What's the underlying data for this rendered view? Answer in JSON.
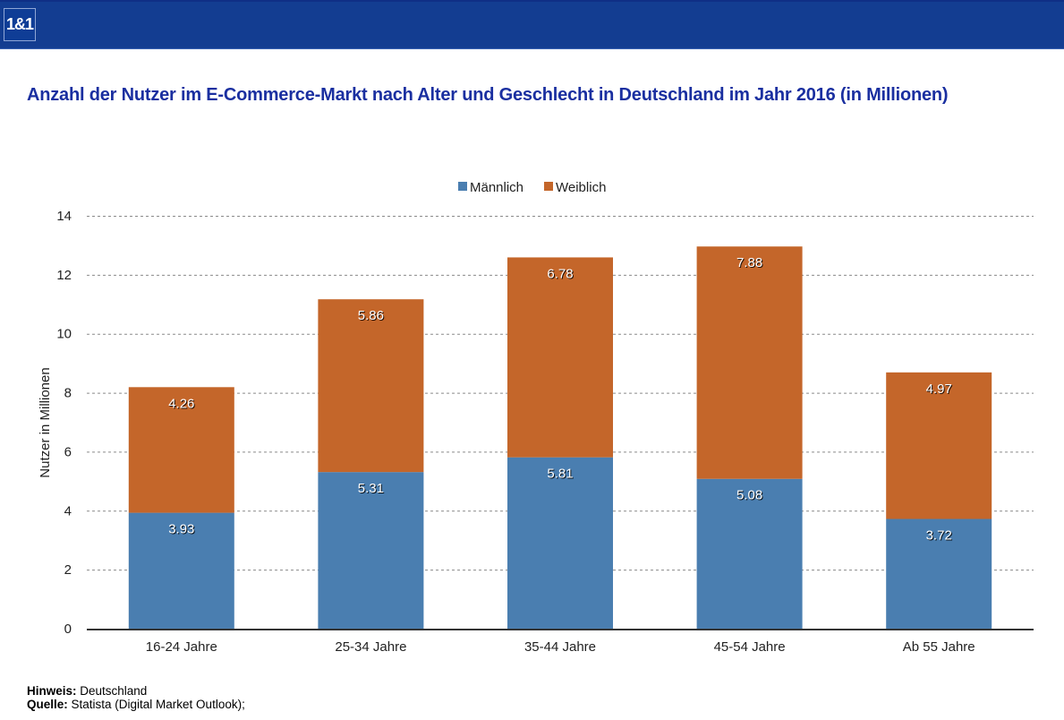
{
  "header": {
    "logo_text": "1&1",
    "brand_color": "#133d91"
  },
  "title": "Anzahl der Nutzer im E-Commerce-Markt nach Alter und Geschlecht in Deutschland im Jahr 2016 (in Millionen)",
  "footer": {
    "hinweis_label": "Hinweis:",
    "hinweis_value": " Deutschland",
    "quelle_label": "Quelle:",
    "quelle_value": " Statista (Digital Market Outlook);"
  },
  "chart_data": {
    "type": "bar",
    "stacked": true,
    "title": "Anzahl der Nutzer im E-Commerce-Markt nach Alter und Geschlecht in Deutschland im Jahr 2016 (in Millionen)",
    "xlabel": "",
    "ylabel": "Nutzer in Millionen",
    "categories": [
      "16-24 Jahre",
      "25-34 Jahre",
      "35-44 Jahre",
      "45-54 Jahre",
      "Ab 55 Jahre"
    ],
    "series": [
      {
        "name": "Männlich",
        "color": "#4a7eb0",
        "values": [
          3.93,
          5.31,
          5.81,
          5.08,
          3.72
        ]
      },
      {
        "name": "Weiblich",
        "color": "#c4662a",
        "values": [
          4.26,
          5.86,
          6.78,
          7.88,
          4.97
        ]
      }
    ],
    "ylim": [
      0,
      14
    ],
    "yticks": [
      0,
      2,
      4,
      6,
      8,
      10,
      12,
      14
    ],
    "grid": true,
    "legend_position": "top-center",
    "data_labels": true
  }
}
